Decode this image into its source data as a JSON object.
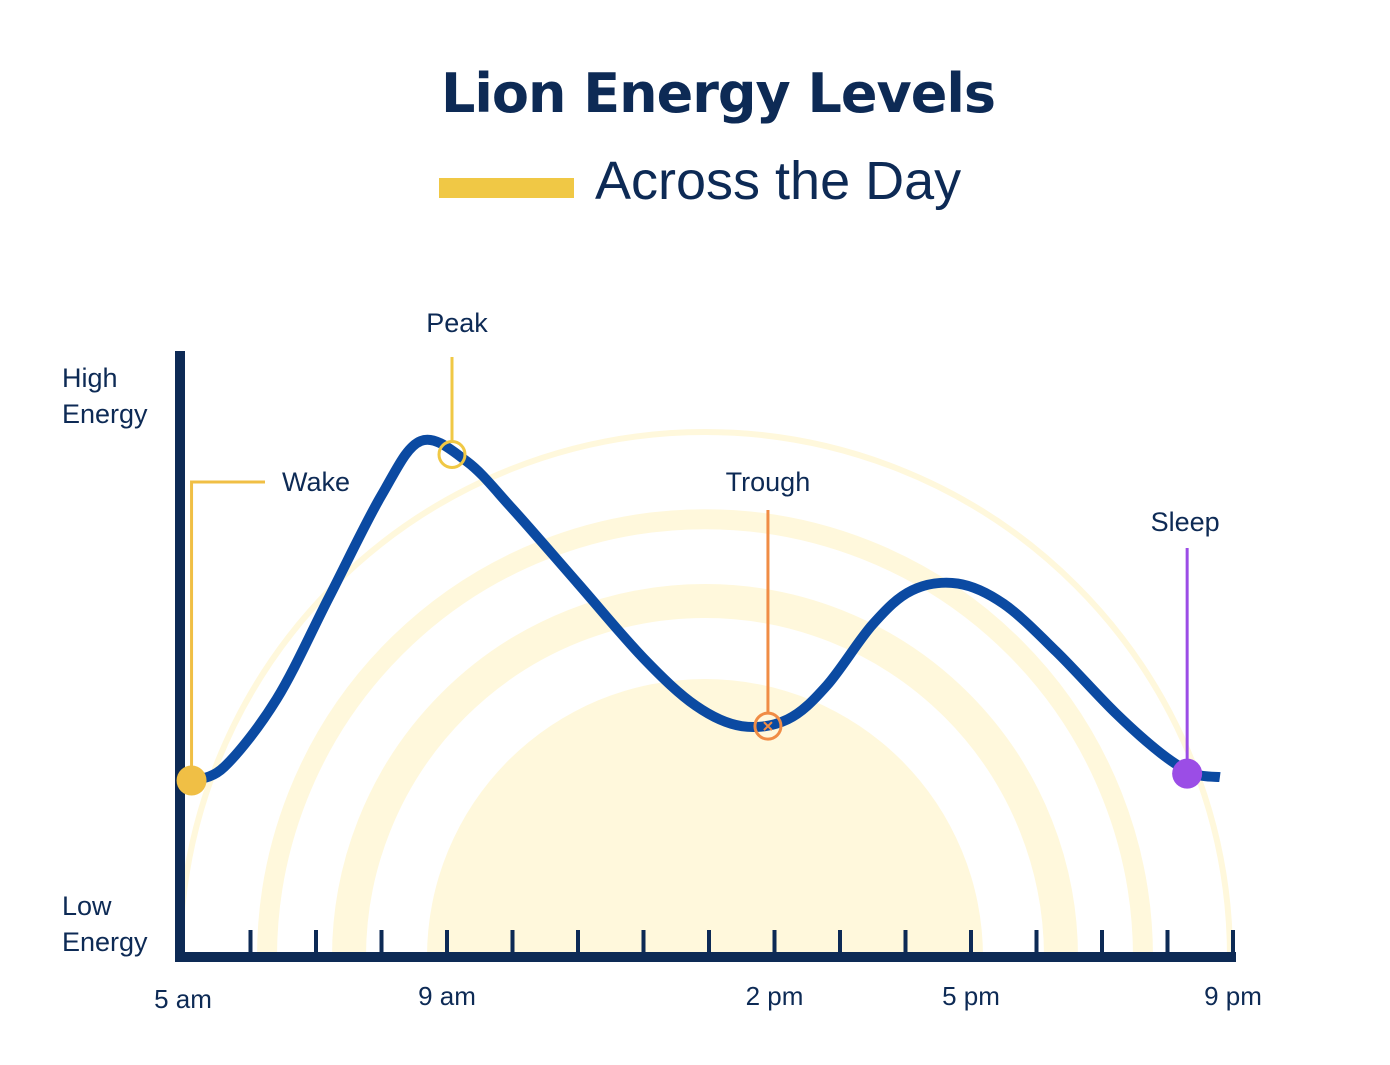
{
  "title": "Lion Energy Levels",
  "subtitle": "Across the Day",
  "colors": {
    "navy": "#0d2a55",
    "curve": "#0b4aa2",
    "wake": "#f0bf45",
    "peak": "#f0c845",
    "trough": "#f08c45",
    "sleep": "#9b4de6",
    "sun": "#fff8dc"
  },
  "chart_data": {
    "type": "line",
    "title": "Lion Energy Levels",
    "subtitle": "Across the Day",
    "ylabel_high": [
      "High",
      "Energy"
    ],
    "ylabel_low": [
      "Low",
      "Energy"
    ],
    "x_unit": "hour of day",
    "xlim": [
      5,
      21
    ],
    "ylim": [
      0,
      100
    ],
    "tick_labels": [
      {
        "x": 5,
        "label": "5 am"
      },
      {
        "x": 9,
        "label": "9 am"
      },
      {
        "x": 14,
        "label": "2 pm"
      },
      {
        "x": 17,
        "label": "5 pm"
      },
      {
        "x": 21,
        "label": "9 pm"
      }
    ],
    "minor_ticks": [
      6,
      7,
      8,
      9,
      10,
      11,
      12,
      13,
      14,
      15,
      16,
      17,
      18,
      19,
      20,
      21
    ],
    "series": [
      {
        "name": "Energy",
        "points": [
          [
            5.1,
            26
          ],
          [
            5.6,
            28
          ],
          [
            6.4,
            38
          ],
          [
            7.2,
            53
          ],
          [
            8.0,
            68
          ],
          [
            8.6,
            76
          ],
          [
            9.3,
            73
          ],
          [
            10.0,
            66
          ],
          [
            11.0,
            55
          ],
          [
            12.0,
            44
          ],
          [
            12.8,
            37
          ],
          [
            13.5,
            34
          ],
          [
            14.2,
            35
          ],
          [
            14.8,
            40
          ],
          [
            15.5,
            49
          ],
          [
            16.1,
            54
          ],
          [
            16.8,
            55
          ],
          [
            17.5,
            52
          ],
          [
            18.3,
            45
          ],
          [
            19.2,
            36
          ],
          [
            19.9,
            30
          ],
          [
            20.4,
            27
          ],
          [
            20.8,
            26.5
          ]
        ]
      }
    ],
    "annotations": [
      {
        "label": "Wake",
        "x": 5.1,
        "y": 26,
        "marker": "filled-circle",
        "color": "#f0bf45"
      },
      {
        "label": "Peak",
        "x": 9.0,
        "y": 74,
        "marker": "open-circle",
        "color": "#f0c845"
      },
      {
        "label": "Trough",
        "x": 13.9,
        "y": 34,
        "marker": "open-circle-x",
        "color": "#f08c45"
      },
      {
        "label": "Sleep",
        "x": 20.3,
        "y": 27,
        "marker": "filled-circle",
        "color": "#9b4de6"
      }
    ],
    "grid": false
  }
}
